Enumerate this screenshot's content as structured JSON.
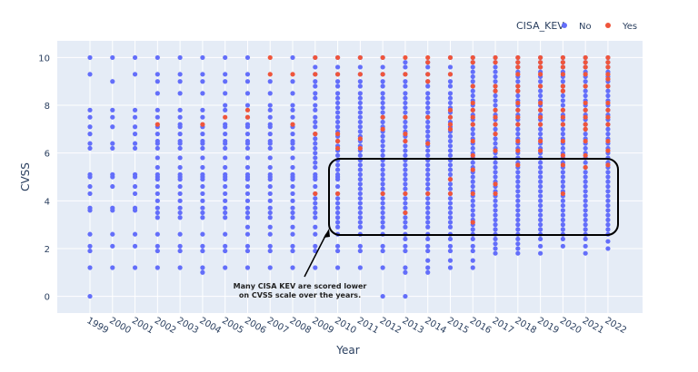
{
  "chart_data": {
    "type": "scatter",
    "xlabel": "Year",
    "ylabel": "CVSS",
    "categories": [
      "1999",
      "2000",
      "2001",
      "2002",
      "2003",
      "2004",
      "2005",
      "2006",
      "2007",
      "2008",
      "2009",
      "2010",
      "2011",
      "2012",
      "2013",
      "2014",
      "2015",
      "2016",
      "2017",
      "2018",
      "2019",
      "2020",
      "2021",
      "2022"
    ],
    "y_ticks": [
      0,
      2,
      4,
      6,
      8,
      10
    ],
    "ylim": [
      -0.7,
      10.7
    ],
    "grid": true,
    "legend": {
      "title": "CISA_KEV",
      "placement": "top-right"
    },
    "series": [
      {
        "name": "No",
        "color": "#636efa",
        "values": {
          "1999": [
            0,
            1.2,
            1.9,
            2.1,
            2.6,
            3.6,
            3.7,
            4.3,
            4.6,
            5.0,
            5.1,
            6.2,
            6.4,
            6.8,
            7.1,
            7.5,
            7.8,
            9.3,
            10
          ],
          "2000": [
            1.2,
            2.1,
            2.6,
            3.6,
            3.7,
            4.6,
            5.0,
            5.1,
            6.2,
            6.4,
            7.1,
            7.5,
            7.8,
            9.0,
            10
          ],
          "2001": [
            1.2,
            2.1,
            2.6,
            3.6,
            3.7,
            4.3,
            4.6,
            5.0,
            5.1,
            6.2,
            6.4,
            6.8,
            7.1,
            7.5,
            7.8,
            9.3,
            10
          ],
          "2002": [
            1.2,
            1.9,
            2.1,
            2.6,
            3.3,
            3.5,
            3.7,
            4.0,
            4.3,
            4.6,
            4.9,
            5.0,
            5.1,
            5.4,
            5.8,
            6.2,
            6.4,
            6.5,
            6.8,
            7.1,
            7.5,
            7.8,
            8.5,
            9.0,
            9.3,
            10
          ],
          "2003": [
            1.2,
            1.9,
            2.1,
            2.6,
            3.3,
            3.5,
            3.7,
            4.0,
            4.3,
            4.6,
            4.9,
            5.0,
            5.1,
            5.4,
            5.8,
            6.2,
            6.4,
            6.5,
            6.8,
            7.1,
            7.2,
            7.5,
            7.8,
            8.5,
            9.0,
            9.3,
            10
          ],
          "2004": [
            1.0,
            1.2,
            1.9,
            2.1,
            2.6,
            3.3,
            3.5,
            3.7,
            4.0,
            4.3,
            4.6,
            4.9,
            5.0,
            5.1,
            5.4,
            5.8,
            6.2,
            6.4,
            6.5,
            6.8,
            7.1,
            7.5,
            7.8,
            8.5,
            9.0,
            9.3,
            10
          ],
          "2005": [
            1.2,
            1.9,
            2.1,
            2.6,
            3.3,
            3.5,
            3.7,
            4.0,
            4.3,
            4.6,
            4.9,
            5.0,
            5.1,
            5.4,
            5.8,
            6.2,
            6.4,
            6.5,
            6.8,
            7.1,
            7.2,
            7.8,
            8.0,
            8.5,
            9.0,
            9.3,
            10
          ],
          "2006": [
            1.2,
            1.9,
            2.1,
            2.6,
            2.9,
            3.3,
            3.5,
            3.7,
            4.0,
            4.3,
            4.6,
            4.9,
            5.0,
            5.1,
            5.4,
            5.8,
            6.2,
            6.4,
            6.5,
            6.8,
            7.1,
            7.2,
            7.5,
            8.0,
            8.5,
            9.0,
            9.3,
            10
          ],
          "2007": [
            1.2,
            1.9,
            2.1,
            2.6,
            2.9,
            3.3,
            3.5,
            3.7,
            4.0,
            4.3,
            4.6,
            4.9,
            5.0,
            5.1,
            5.4,
            5.8,
            6.2,
            6.4,
            6.5,
            6.8,
            7.1,
            7.2,
            7.5,
            7.8,
            8.0,
            8.5,
            9.0
          ],
          "2008": [
            1.2,
            1.9,
            2.1,
            2.6,
            2.9,
            3.3,
            3.5,
            3.7,
            4.0,
            4.3,
            4.6,
            4.9,
            5.0,
            5.1,
            5.4,
            5.8,
            6.2,
            6.4,
            6.5,
            6.8,
            7.1,
            7.5,
            7.8,
            8.0,
            8.5,
            9.0,
            10
          ],
          "2009": [
            1.2,
            1.9,
            2.1,
            2.6,
            2.9,
            3.3,
            3.5,
            3.7,
            3.9,
            4.1,
            4.3,
            4.6,
            4.9,
            5.0,
            5.1,
            5.4,
            5.6,
            5.8,
            6.0,
            6.2,
            6.4,
            6.6,
            6.8,
            7.1,
            7.3,
            7.5,
            7.8,
            8.0,
            8.3,
            8.5,
            8.8,
            9.0,
            9.3,
            9.6,
            10
          ],
          "2010": [
            1.2,
            1.9,
            2.1,
            2.6,
            2.9,
            3.1,
            3.3,
            3.5,
            3.7,
            3.9,
            4.1,
            4.3,
            4.6,
            4.9,
            5.0,
            5.1,
            5.3,
            5.5,
            5.7,
            5.9,
            6.1,
            6.3,
            6.5,
            6.7,
            6.9,
            7.1,
            7.3,
            7.5,
            7.7,
            7.9,
            8.1,
            8.3,
            8.5,
            8.8,
            9.0,
            9.3,
            9.6,
            10
          ],
          "2011": [
            1.2,
            1.9,
            2.1,
            2.6,
            2.9,
            3.1,
            3.3,
            3.5,
            3.7,
            3.9,
            4.1,
            4.3,
            4.5,
            4.7,
            4.9,
            5.1,
            5.3,
            5.5,
            5.7,
            5.9,
            6.1,
            6.3,
            6.5,
            6.7,
            6.9,
            7.1,
            7.3,
            7.5,
            7.7,
            7.9,
            8.1,
            8.3,
            8.5,
            8.8,
            9.0,
            9.3,
            9.6,
            10
          ],
          "2012": [
            0,
            1.2,
            1.9,
            2.1,
            2.6,
            2.9,
            3.1,
            3.3,
            3.5,
            3.7,
            3.9,
            4.1,
            4.3,
            4.5,
            4.7,
            4.9,
            5.1,
            5.3,
            5.5,
            5.7,
            5.9,
            6.1,
            6.3,
            6.5,
            6.7,
            6.9,
            7.1,
            7.3,
            7.5,
            7.7,
            7.9,
            8.1,
            8.3,
            8.5,
            8.8,
            9.0,
            9.3,
            9.6,
            10
          ],
          "2013": [
            0,
            1.0,
            1.2,
            1.9,
            2.1,
            2.4,
            2.6,
            2.9,
            3.1,
            3.3,
            3.5,
            3.7,
            3.9,
            4.1,
            4.3,
            4.5,
            4.7,
            4.9,
            5.1,
            5.3,
            5.5,
            5.7,
            5.9,
            6.1,
            6.3,
            6.5,
            6.7,
            6.9,
            7.1,
            7.3,
            7.5,
            7.7,
            7.9,
            8.1,
            8.3,
            8.5,
            8.8,
            9.0,
            9.3,
            9.6,
            9.8
          ],
          "2014": [
            1.0,
            1.2,
            1.5,
            1.9,
            2.1,
            2.4,
            2.6,
            2.9,
            3.1,
            3.3,
            3.5,
            3.7,
            3.9,
            4.1,
            4.3,
            4.5,
            4.7,
            4.9,
            5.1,
            5.3,
            5.5,
            5.7,
            5.9,
            6.1,
            6.3,
            6.5,
            6.7,
            6.9,
            7.1,
            7.3,
            7.5,
            7.7,
            7.9,
            8.1,
            8.3,
            8.5,
            8.8,
            9.0,
            9.3,
            9.6,
            9.8
          ],
          "2015": [
            1.2,
            1.5,
            1.9,
            2.1,
            2.4,
            2.6,
            2.9,
            3.1,
            3.3,
            3.5,
            3.7,
            3.9,
            4.1,
            4.3,
            4.5,
            4.7,
            4.9,
            5.1,
            5.3,
            5.5,
            5.7,
            5.9,
            6.1,
            6.3,
            6.5,
            6.7,
            6.9,
            7.1,
            7.3,
            7.5,
            7.7,
            7.9,
            8.1,
            8.3,
            8.5,
            8.8,
            9.0,
            9.3,
            9.6,
            10
          ],
          "2016": [
            1.2,
            1.5,
            1.9,
            2.1,
            2.4,
            2.6,
            2.8,
            3.0,
            3.2,
            3.4,
            3.6,
            3.8,
            4.0,
            4.2,
            4.4,
            4.6,
            4.8,
            5.0,
            5.2,
            5.4,
            5.6,
            5.8,
            6.0,
            6.2,
            6.4,
            6.6,
            6.8,
            7.0,
            7.2,
            7.4,
            7.6,
            7.8,
            8.0,
            8.2,
            8.4,
            8.6,
            8.8,
            9.0,
            9.2,
            9.4,
            9.6,
            9.8,
            10
          ],
          "2017": [
            1.8,
            2.0,
            2.2,
            2.4,
            2.6,
            2.8,
            3.0,
            3.2,
            3.4,
            3.6,
            3.8,
            4.0,
            4.2,
            4.4,
            4.6,
            4.8,
            5.0,
            5.2,
            5.4,
            5.6,
            5.8,
            6.0,
            6.2,
            6.4,
            6.6,
            6.8,
            7.0,
            7.2,
            7.4,
            7.6,
            7.8,
            8.0,
            8.2,
            8.4,
            8.6,
            8.8,
            9.0,
            9.2,
            9.4,
            9.6,
            9.8,
            10
          ],
          "2018": [
            1.8,
            2.0,
            2.2,
            2.4,
            2.6,
            2.8,
            3.0,
            3.2,
            3.4,
            3.6,
            3.8,
            4.0,
            4.2,
            4.4,
            4.6,
            4.8,
            5.0,
            5.2,
            5.4,
            5.6,
            5.8,
            6.0,
            6.2,
            6.4,
            6.6,
            6.8,
            7.0,
            7.2,
            7.4,
            7.6,
            7.8,
            8.0,
            8.2,
            8.4,
            8.6,
            8.8,
            9.0,
            9.2,
            9.4,
            9.6,
            9.8,
            10
          ],
          "2019": [
            1.8,
            2.1,
            2.4,
            2.6,
            2.8,
            3.0,
            3.2,
            3.4,
            3.6,
            3.8,
            4.0,
            4.2,
            4.4,
            4.6,
            4.8,
            5.0,
            5.2,
            5.4,
            5.6,
            5.8,
            6.0,
            6.2,
            6.4,
            6.6,
            6.8,
            7.0,
            7.2,
            7.4,
            7.6,
            7.8,
            8.0,
            8.2,
            8.4,
            8.6,
            8.8,
            9.0,
            9.2,
            9.4,
            9.6,
            9.8,
            10
          ],
          "2020": [
            2.1,
            2.4,
            2.6,
            2.8,
            3.0,
            3.2,
            3.4,
            3.6,
            3.8,
            4.0,
            4.2,
            4.4,
            4.6,
            4.8,
            5.0,
            5.2,
            5.4,
            5.6,
            5.8,
            6.0,
            6.2,
            6.4,
            6.6,
            6.8,
            7.0,
            7.2,
            7.4,
            7.6,
            7.8,
            8.0,
            8.2,
            8.4,
            8.6,
            8.8,
            9.0,
            9.2,
            9.4,
            9.6,
            9.8,
            10
          ],
          "2021": [
            1.8,
            2.1,
            2.4,
            2.6,
            2.8,
            3.0,
            3.2,
            3.4,
            3.6,
            3.8,
            4.0,
            4.2,
            4.4,
            4.6,
            4.8,
            5.0,
            5.2,
            5.4,
            5.6,
            5.8,
            6.0,
            6.2,
            6.4,
            6.6,
            6.8,
            7.0,
            7.2,
            7.4,
            7.6,
            7.8,
            8.0,
            8.2,
            8.4,
            8.6,
            8.8,
            9.0,
            9.2,
            9.4,
            9.6,
            9.8,
            10
          ],
          "2022": [
            2.0,
            2.3,
            2.6,
            2.8,
            3.0,
            3.2,
            3.4,
            3.6,
            3.8,
            4.0,
            4.2,
            4.4,
            4.6,
            4.8,
            5.0,
            5.2,
            5.4,
            5.6,
            5.8,
            6.0,
            6.2,
            6.4,
            6.6,
            6.8,
            7.0,
            7.2,
            7.4,
            7.6,
            7.8,
            8.0,
            8.2,
            8.4,
            8.6,
            8.8,
            9.0,
            9.2,
            9.4,
            9.6,
            9.8,
            10
          ]
        }
      },
      {
        "name": "Yes",
        "color": "#ef553b",
        "values": {
          "2002": [
            7.2
          ],
          "2004": [
            7.2
          ],
          "2005": [
            7.5
          ],
          "2006": [
            7.8,
            7.5
          ],
          "2007": [
            10,
            9.3
          ],
          "2008": [
            9.3,
            7.2
          ],
          "2009": [
            10,
            9.3,
            6.8,
            4.3
          ],
          "2010": [
            10,
            9.3,
            6.8,
            6.5,
            6.2,
            4.3
          ],
          "2011": [
            10,
            9.3,
            6.6,
            6.2
          ],
          "2012": [
            10,
            9.3,
            7.5,
            7.0,
            4.3
          ],
          "2013": [
            10,
            9.3,
            7.5,
            6.8,
            6.5,
            4.3,
            3.5
          ],
          "2014": [
            10,
            9.8,
            9.3,
            9.0,
            7.5,
            6.4,
            4.3
          ],
          "2015": [
            10,
            9.3,
            7.8,
            7.5,
            7.2,
            7.0,
            4.9,
            4.3
          ],
          "2016": [
            10,
            9.8,
            8.8,
            8.1,
            7.8,
            7.5,
            7.2,
            6.5,
            5.9,
            5.3,
            4.3,
            3.1
          ],
          "2017": [
            10,
            9.8,
            8.8,
            8.6,
            7.8,
            7.5,
            7.2,
            6.8,
            6.1,
            4.7,
            4.3
          ],
          "2018": [
            10,
            9.8,
            9.6,
            9.3,
            8.8,
            8.6,
            8.1,
            7.8,
            7.5,
            7.2,
            6.5,
            6.1,
            5.5
          ],
          "2019": [
            10,
            9.8,
            9.6,
            9.3,
            8.8,
            8.1,
            7.8,
            7.5,
            7.2,
            6.5,
            6.1
          ],
          "2020": [
            10,
            9.8,
            9.6,
            9.3,
            8.8,
            8.6,
            7.8,
            7.5,
            7.2,
            6.5,
            5.9,
            5.5,
            4.3
          ],
          "2021": [
            10,
            9.8,
            9.6,
            9.3,
            8.8,
            8.1,
            7.8,
            7.5,
            7.2,
            7.0,
            6.5,
            5.9,
            5.4
          ],
          "2022": [
            10,
            9.8,
            9.6,
            9.3,
            9.1,
            8.8,
            8.1,
            7.8,
            7.5,
            7.2,
            6.5,
            6.1,
            5.5
          ]
        }
      }
    ],
    "annotation": {
      "lines": [
        "Many CISA KEV are scored lower",
        "on CVSS scale over the years."
      ]
    }
  }
}
